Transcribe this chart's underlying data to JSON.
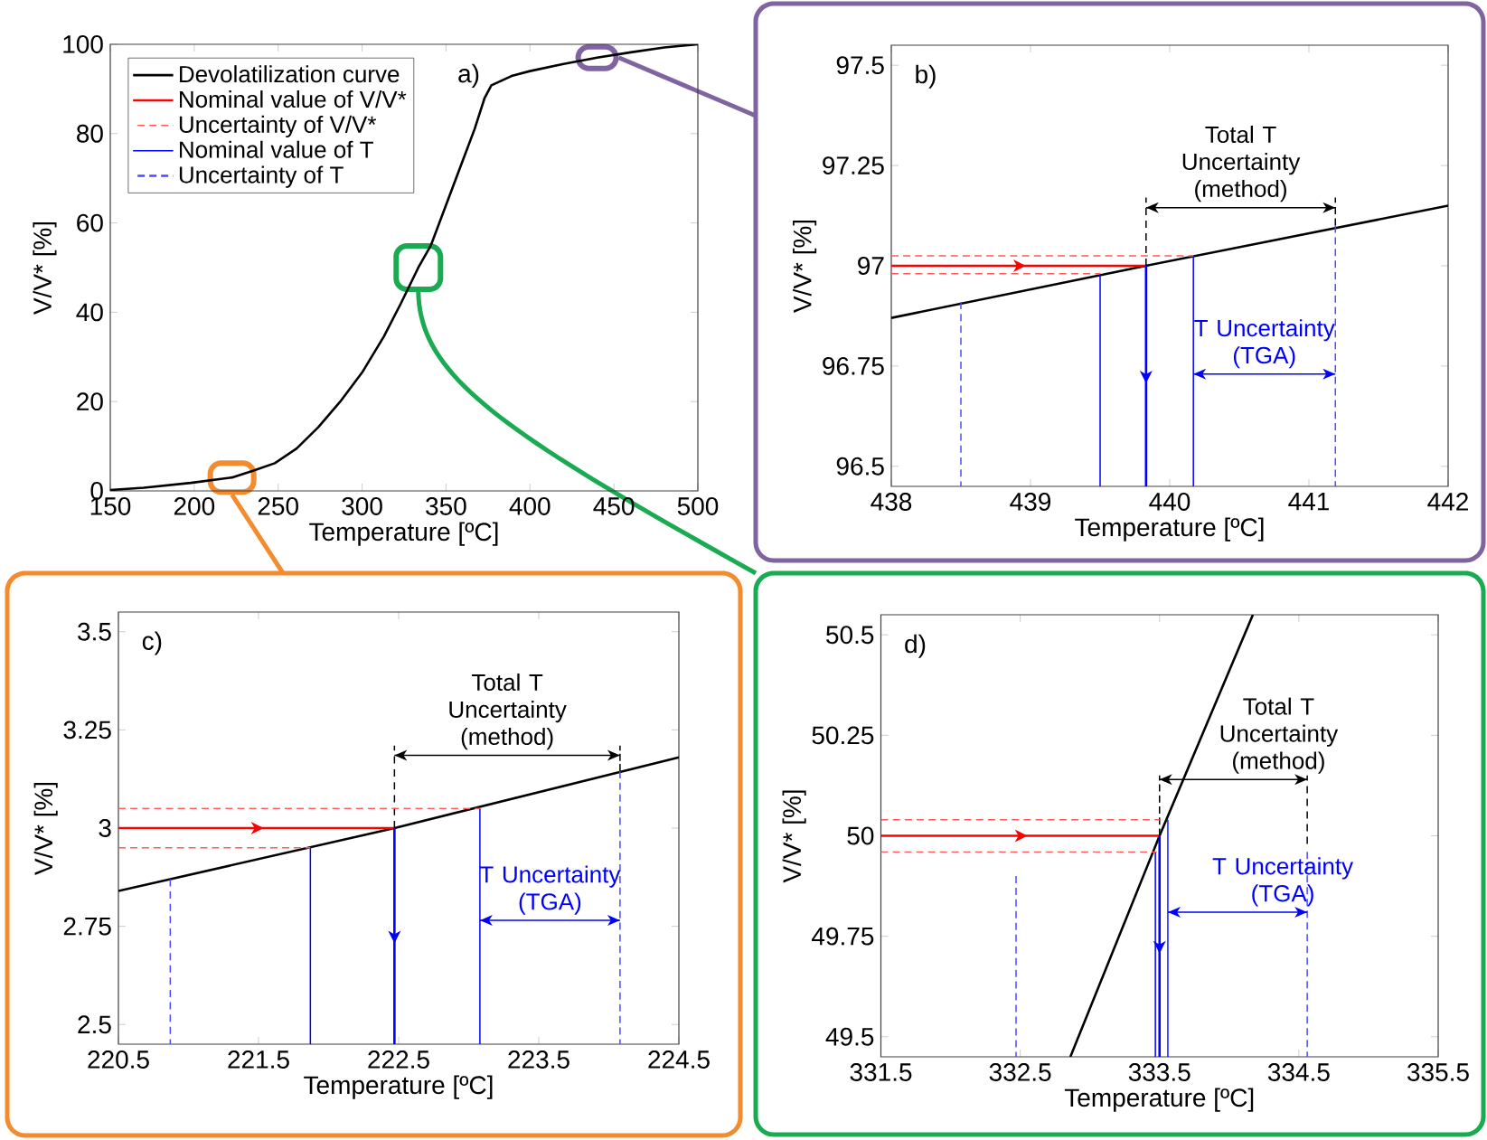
{
  "chart_data": [
    {
      "type": "line",
      "xlabel": "Temperature [ºC]",
      "ylabel": "V/V* [%]",
      "xlim": [
        150,
        500
      ],
      "ylim": [
        0,
        100
      ],
      "xticks": [
        150,
        200,
        250,
        300,
        350,
        400,
        450,
        500
      ],
      "yticks": [
        0,
        20,
        40,
        60,
        80,
        100
      ],
      "legend": "top left",
      "series": [
        {
          "name": "Devolatilization curve",
          "color": "#000000",
          "line_style": "solid",
          "x": [
            150,
            170,
            198,
            222.5,
            235,
            248,
            261,
            274,
            287,
            300,
            313,
            323,
            333.5,
            341,
            349,
            358,
            367,
            373,
            377,
            389,
            400,
            420,
            440,
            460,
            480,
            500
          ],
          "values": [
            0.2,
            0.7,
            1.8,
            3,
            4.5,
            6.2,
            9.5,
            14.3,
            20,
            26.5,
            34.6,
            41.9,
            50,
            55,
            63,
            72,
            81,
            88,
            90.8,
            92.9,
            94,
            95.6,
            97,
            98.2,
            99.3,
            100
          ]
        },
        {
          "name": "Nominal value of V/V*",
          "color": "#ff0000",
          "line_style": "solid"
        },
        {
          "name": "Uncertainty of V/V*",
          "color": "#ff5a5a",
          "line_style": "dashed"
        },
        {
          "name": "Nominal value of T",
          "color": "#0000ff",
          "line_style": "solid"
        },
        {
          "name": "Uncertainty of T",
          "color": "#4a4aff",
          "line_style": "dashed"
        }
      ],
      "annotations": [
        "a)"
      ]
    },
    {
      "type": "line",
      "xlabel": "Temperature [ºC]",
      "ylabel": "V/V* [%]",
      "xlim": [
        438,
        442
      ],
      "ylim": [
        96.45,
        97.55
      ],
      "xticks": [
        438,
        439,
        440,
        441,
        442
      ],
      "yticks": [
        96.5,
        96.75,
        97,
        97.25,
        97.5
      ],
      "series": [
        {
          "color": "#000000",
          "line_style": "solid",
          "x": [
            438,
            439.83,
            442
          ],
          "values": [
            96.87,
            97,
            97.15
          ]
        },
        {
          "color": "#ff0000",
          "line_style": "solid",
          "x": [
            438,
            439.83
          ],
          "values": [
            97,
            97
          ]
        },
        {
          "color": "#ff5a5a",
          "line_style": "dashed",
          "x": [
            438,
            440.17
          ],
          "values": [
            97.025,
            97.025
          ]
        },
        {
          "color": "#ff5a5a",
          "line_style": "dashed",
          "x": [
            438,
            439.5
          ],
          "values": [
            96.98,
            96.98
          ]
        },
        {
          "color": "#0000ff",
          "line_style": "solid",
          "x": [
            439.83,
            439.83
          ],
          "values": [
            97,
            96.45
          ]
        },
        {
          "color": "#0000ff",
          "line_style": "solid",
          "x": [
            439.5,
            439.5
          ],
          "values": [
            96.98,
            96.45
          ]
        },
        {
          "color": "#0000ff",
          "line_style": "solid",
          "x": [
            440.17,
            440.17
          ],
          "values": [
            97.025,
            96.45
          ]
        },
        {
          "color": "#4a4aff",
          "line_style": "dashed",
          "x": [
            438.5,
            438.5
          ],
          "values": [
            96.91,
            96.45
          ]
        },
        {
          "color": "#4a4aff",
          "line_style": "dashed",
          "x": [
            441.19,
            441.19
          ],
          "values": [
            97.1,
            96.45
          ]
        },
        {
          "color": "#000000",
          "line_style": "dashed",
          "x": [
            439.83,
            439.83
          ],
          "values": [
            97,
            97.17
          ]
        },
        {
          "color": "#000000",
          "line_style": "dashed",
          "x": [
            441.19,
            441.19
          ],
          "values": [
            97.1,
            97.17
          ]
        },
        {
          "color": "#000000",
          "line_style": "solid",
          "x": [
            439.83,
            441.19
          ],
          "values": [
            97.145,
            97.145
          ]
        },
        {
          "color": "#0000ff",
          "line_style": "solid",
          "x": [
            440.17,
            441.19
          ],
          "values": [
            96.73,
            96.73
          ]
        }
      ],
      "annotations": [
        "b)",
        "Total T Uncertainty (method)",
        "T Uncertainty (TGA)"
      ]
    },
    {
      "type": "line",
      "xlabel": "Temperature [ºC]",
      "ylabel": "V/V* [%]",
      "xlim": [
        220.5,
        224.5
      ],
      "ylim": [
        2.45,
        3.55
      ],
      "xticks": [
        220.5,
        221.5,
        222.5,
        223.5,
        224.5
      ],
      "yticks": [
        2.5,
        2.75,
        3,
        3.25,
        3.5
      ],
      "series": [
        {
          "color": "#000000",
          "line_style": "solid",
          "x": [
            220.5,
            222.47,
            224.5
          ],
          "values": [
            2.84,
            3,
            3.18
          ]
        },
        {
          "color": "#ff0000",
          "line_style": "solid",
          "x": [
            220.5,
            222.47
          ],
          "values": [
            3,
            3
          ]
        },
        {
          "color": "#ff5a5a",
          "line_style": "dashed",
          "x": [
            220.5,
            223.08
          ],
          "values": [
            3.05,
            3.05
          ]
        },
        {
          "color": "#ff5a5a",
          "line_style": "dashed",
          "x": [
            220.5,
            221.87
          ],
          "values": [
            2.95,
            2.95
          ]
        },
        {
          "color": "#0000ff",
          "line_style": "solid",
          "x": [
            222.47,
            222.47
          ],
          "values": [
            3,
            2.45
          ]
        },
        {
          "color": "#0000ff",
          "line_style": "solid",
          "x": [
            221.87,
            221.87
          ],
          "values": [
            2.95,
            2.45
          ]
        },
        {
          "color": "#0000ff",
          "line_style": "solid",
          "x": [
            223.08,
            223.08
          ],
          "values": [
            3.05,
            2.45
          ]
        },
        {
          "color": "#4a4aff",
          "line_style": "dashed",
          "x": [
            220.87,
            220.87
          ],
          "values": [
            2.87,
            2.45
          ]
        },
        {
          "color": "#4a4aff",
          "line_style": "dashed",
          "x": [
            224.08,
            224.08
          ],
          "values": [
            3.145,
            2.45
          ]
        },
        {
          "color": "#000000",
          "line_style": "dashed",
          "x": [
            222.47,
            222.47
          ],
          "values": [
            3,
            3.21
          ]
        },
        {
          "color": "#000000",
          "line_style": "dashed",
          "x": [
            224.08,
            224.08
          ],
          "values": [
            3.145,
            3.21
          ]
        },
        {
          "color": "#000000",
          "line_style": "solid",
          "x": [
            222.47,
            224.08
          ],
          "values": [
            3.185,
            3.185
          ]
        },
        {
          "color": "#0000ff",
          "line_style": "solid",
          "x": [
            223.08,
            224.08
          ],
          "values": [
            2.765,
            2.765
          ]
        }
      ],
      "annotations": [
        "c)",
        "Total T Uncertainty (method)",
        "T Uncertainty (TGA)"
      ]
    },
    {
      "type": "line",
      "xlabel": "Temperature [ºC]",
      "ylabel": "V/V* [%]",
      "xlim": [
        331.5,
        335.5
      ],
      "ylim": [
        49.45,
        50.55
      ],
      "xticks": [
        331.5,
        332.5,
        333.5,
        334.5,
        335.5
      ],
      "yticks": [
        49.5,
        49.75,
        50,
        50.25,
        50.5
      ],
      "series": [
        {
          "color": "#000000",
          "line_style": "solid",
          "x": [
            332.86,
            333.5,
            334.17
          ],
          "values": [
            49.45,
            50,
            50.55
          ]
        },
        {
          "color": "#ff0000",
          "line_style": "solid",
          "x": [
            331.5,
            333.5
          ],
          "values": [
            50,
            50
          ]
        },
        {
          "color": "#ff5a5a",
          "line_style": "dashed",
          "x": [
            331.5,
            333.5
          ],
          "values": [
            50.04,
            50.04
          ]
        },
        {
          "color": "#ff5a5a",
          "line_style": "dashed",
          "x": [
            331.5,
            333.48
          ],
          "values": [
            49.96,
            49.96
          ]
        },
        {
          "color": "#0000ff",
          "line_style": "solid",
          "x": [
            333.5,
            333.5
          ],
          "values": [
            50,
            49.45
          ]
        },
        {
          "color": "#0000ff",
          "line_style": "solid",
          "x": [
            333.47,
            333.47
          ],
          "values": [
            49.96,
            49.45
          ]
        },
        {
          "color": "#0000ff",
          "line_style": "solid",
          "x": [
            333.56,
            333.56
          ],
          "values": [
            50.04,
            49.45
          ]
        },
        {
          "color": "#4a4aff",
          "line_style": "dashed",
          "x": [
            332.47,
            332.47
          ],
          "values": [
            49.9,
            49.45
          ]
        },
        {
          "color": "#4a4aff",
          "line_style": "dashed",
          "x": [
            334.56,
            334.56
          ],
          "values": [
            49.96,
            49.45
          ]
        },
        {
          "color": "#000000",
          "line_style": "dashed",
          "x": [
            333.5,
            333.5
          ],
          "values": [
            50,
            50.15
          ]
        },
        {
          "color": "#000000",
          "line_style": "dashed",
          "x": [
            334.56,
            334.56
          ],
          "values": [
            49.98,
            50.15
          ]
        },
        {
          "color": "#000000",
          "line_style": "solid",
          "x": [
            333.5,
            334.56
          ],
          "values": [
            50.14,
            50.14
          ]
        },
        {
          "color": "#0000ff",
          "line_style": "solid",
          "x": [
            333.56,
            334.56
          ],
          "values": [
            49.81,
            49.81
          ]
        }
      ],
      "annotations": [
        "d)",
        "Total T Uncertainty (method)",
        "T Uncertainty (TGA)"
      ]
    }
  ]
}
